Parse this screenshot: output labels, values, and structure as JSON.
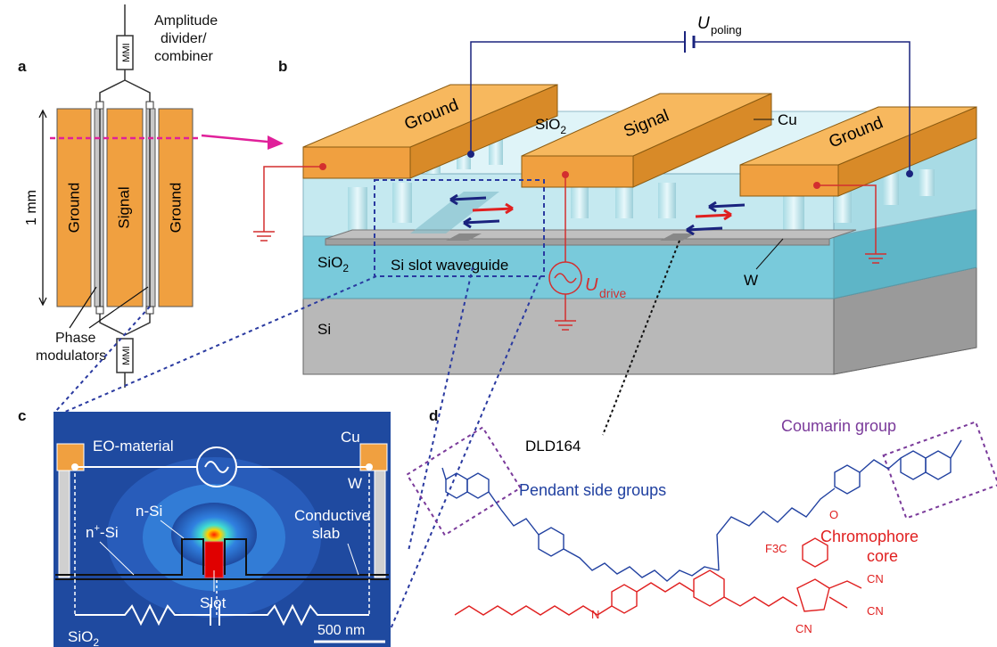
{
  "panels": {
    "a": "a",
    "b": "b",
    "c": "c",
    "d": "d"
  },
  "panel_a": {
    "divider_label_line1": "Amplitude",
    "divider_label_line2": "divider/",
    "divider_label_line3": "combiner",
    "mmi_label": "MMI",
    "ground_left": "Ground",
    "signal": "Signal",
    "ground_right": "Ground",
    "length_label": "1 mm",
    "phase_label_line1": "Phase",
    "phase_label_line2": "modulators"
  },
  "panel_b": {
    "voltage_poling": "U",
    "voltage_poling_sub": "poling",
    "ground_left": "Ground",
    "signal": "Signal",
    "ground_right": "Ground",
    "sio2_top": "SiO",
    "sio2_top_sub": "2",
    "cu_label": "Cu",
    "sio2_box": "SiO",
    "sio2_box_sub": "2",
    "si_label": "Si",
    "slot_waveguide": "Si slot waveguide",
    "voltage_drive": "U",
    "voltage_drive_sub": "drive",
    "w_label": "W",
    "dld_label": "DLD164"
  },
  "panel_c": {
    "eo_material": "EO-material",
    "cu_label": "Cu",
    "w_label": "W",
    "n_si": "n-Si",
    "nplus_si": "n",
    "nplus_sup": "+",
    "nplus_rest": "-Si",
    "conductive_line1": "Conductive",
    "conductive_line2": "slab",
    "slot": "Slot",
    "sio2": "SiO",
    "sio2_sub": "2",
    "scale_bar": "500 nm"
  },
  "panel_d": {
    "coumarin": "Coumarin group",
    "pendant": "Pendant side groups",
    "chromophore_line1": "Chromophore",
    "chromophore_line2": "core",
    "cn1": "CN",
    "cn2": "CN",
    "cn3": "CN",
    "f3c": "F3C",
    "n_atom": "N",
    "o_atoms": "O"
  },
  "colors": {
    "electrode": "#f0a040",
    "electrode_top": "#f7b85e",
    "sio2": "#8fd3e0",
    "si": "#b8b8b8",
    "field_bg": "#1f4aa0",
    "chromophore": "#e02020",
    "pendant": "#2040a0",
    "coumarin_box": "#7a3a9a",
    "poling_wire": "#1a237e",
    "drive_wire": "#d32f2f"
  }
}
